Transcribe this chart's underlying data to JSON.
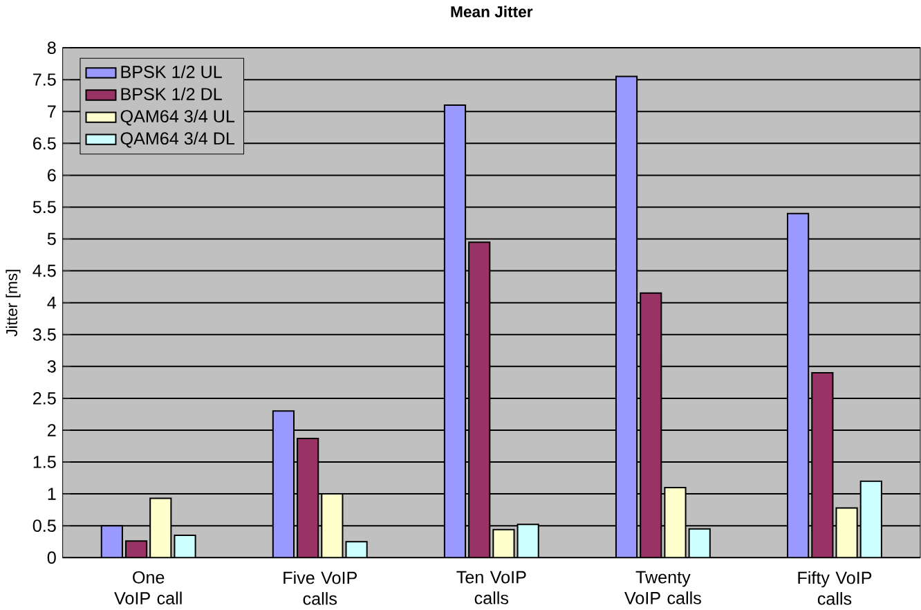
{
  "chart_data": {
    "type": "bar",
    "title": "Mean Jitter",
    "ylabel": "Jitter [ms]",
    "categories": [
      "One VoIP call",
      "Five VoIP calls",
      "Ten VoIP calls",
      "Twenty VoIP calls",
      "Fifty VoIP calls"
    ],
    "series": [
      {
        "name": "BPSK 1/2 UL",
        "color": "#9999ff",
        "values": [
          0.5,
          2.3,
          7.1,
          7.55,
          5.4
        ]
      },
      {
        "name": "BPSK 1/2 DL",
        "color": "#993366",
        "values": [
          0.26,
          1.87,
          4.95,
          4.15,
          2.9
        ]
      },
      {
        "name": "QAM64 3/4 UL",
        "color": "#ffffcc",
        "values": [
          0.93,
          1.0,
          0.44,
          1.1,
          0.78
        ]
      },
      {
        "name": "QAM64 3/4 DL",
        "color": "#ccffff",
        "values": [
          0.35,
          0.25,
          0.52,
          0.45,
          1.2
        ]
      }
    ],
    "ylim": [
      0,
      8
    ],
    "yticks": [
      0,
      0.5,
      1,
      1.5,
      2,
      2.5,
      3,
      3.5,
      4,
      4.5,
      5,
      5.5,
      6,
      6.5,
      7,
      7.5,
      8
    ],
    "grid": "y",
    "legend": "top left"
  }
}
